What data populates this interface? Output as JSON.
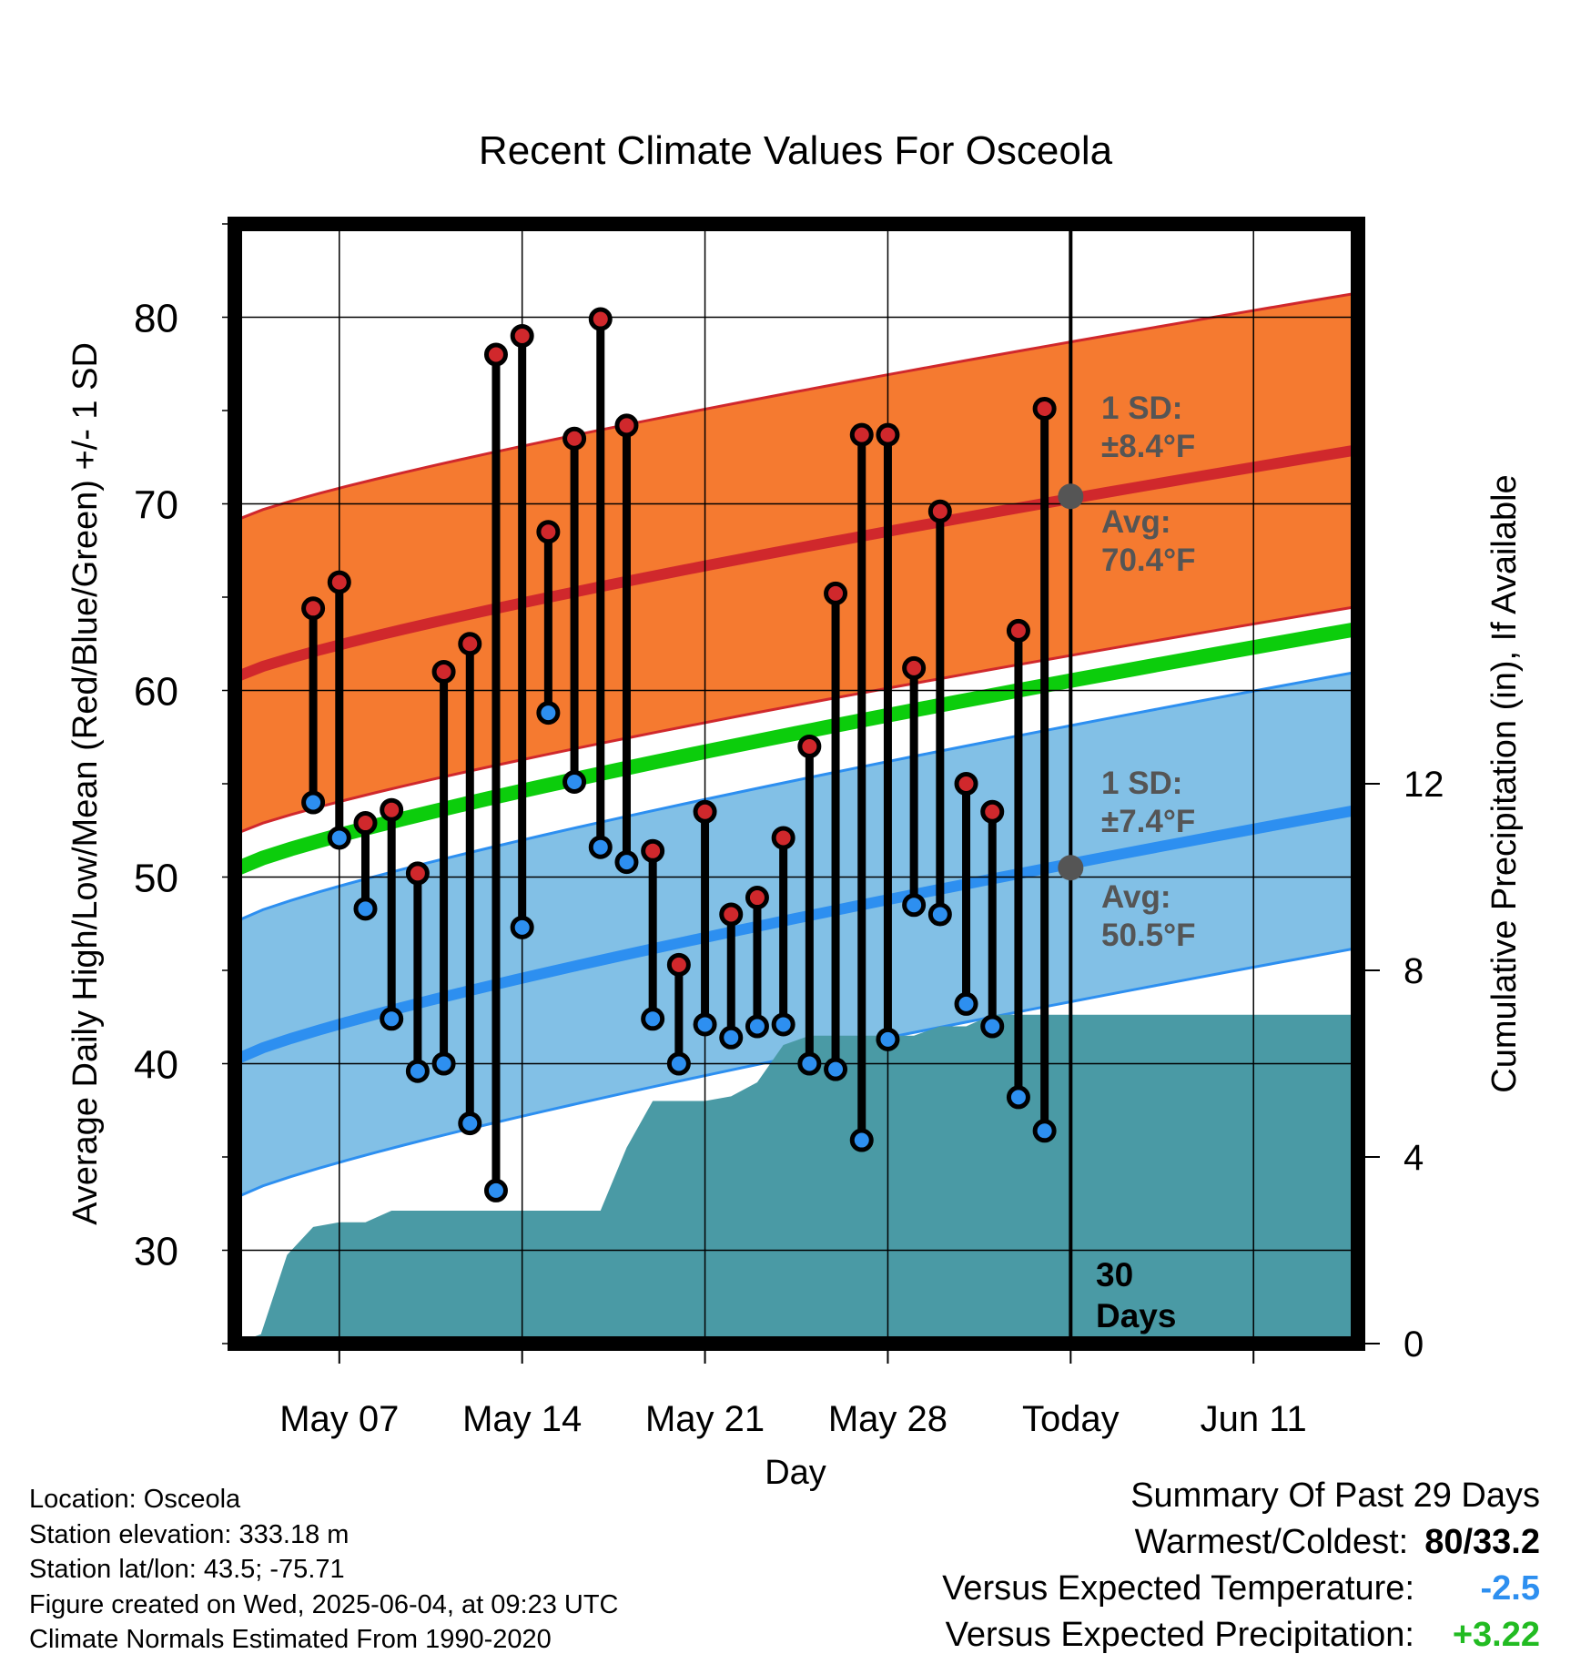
{
  "chart_data": {
    "type": "line",
    "title": "Recent Climate Values For Osceola",
    "xlabel": "Day",
    "ylabel": "Average Daily High/Low/Mean (Red/Blue/Green) +/- 1 SD",
    "y2label": "Cumulative Precipitation (in), If Available",
    "xlim_days": [
      3,
      17
    ],
    "ylim": [
      25,
      85
    ],
    "y2lim": [
      0,
      24
    ],
    "x_tick_labels": [
      "May 07",
      "May 14",
      "May 21",
      "May 28",
      "Today",
      "Jun 11"
    ],
    "y_tick_labels": [
      "30",
      "40",
      "50",
      "60",
      "70",
      "80"
    ],
    "y2_tick_labels": [
      "0",
      "4",
      "8",
      "12"
    ],
    "grid": true,
    "colors": {
      "high": "#d0282c",
      "low": "#2d8ff0",
      "mean": "#0ccd0c",
      "high_band": "#f57a30",
      "low_band": "#82c0e6",
      "precip": "#4a9aa5"
    },
    "days": [
      "May 06",
      "May 07",
      "May 08",
      "May 09",
      "May 10",
      "May 11",
      "May 12",
      "May 13",
      "May 14",
      "May 15",
      "May 16",
      "May 17",
      "May 18",
      "May 19",
      "May 20",
      "May 21",
      "May 22",
      "May 23",
      "May 24",
      "May 25",
      "May 26",
      "May 27",
      "May 28",
      "May 29",
      "May 30",
      "May 31",
      "Jun 01",
      "Jun 02",
      "Jun 03"
    ],
    "series": [
      {
        "name": "High",
        "values": [
          64.4,
          65.8,
          52.9,
          53.6,
          50.2,
          61.0,
          62.5,
          78.0,
          79.0,
          68.5,
          73.5,
          79.9,
          74.2,
          51.4,
          45.3,
          53.5,
          48.0,
          48.9,
          52.1,
          57.0,
          65.2,
          73.7,
          73.7,
          61.2,
          69.6,
          55.0,
          53.5,
          63.2,
          75.1
        ]
      },
      {
        "name": "Low",
        "values": [
          54.0,
          52.1,
          48.3,
          42.4,
          39.6,
          40.0,
          36.8,
          33.2,
          47.3,
          58.8,
          55.1,
          51.6,
          50.8,
          42.4,
          40.0,
          42.1,
          41.4,
          42.0,
          42.1,
          40.0,
          39.7,
          35.9,
          41.3,
          48.5,
          48.0,
          43.2,
          42.0,
          38.2,
          36.4
        ]
      }
    ],
    "normals": {
      "high_avg": {
        "May 03": 60.7,
        "Jun 15": 72.9
      },
      "low_avg": {
        "May 03": 40.2,
        "Jun 15": 53.6
      },
      "mean_avg": {
        "May 03": 50.4,
        "Jun 15": 63.3
      }
    },
    "precip": {
      "name": "Cumulative Precipitation",
      "x": [
        "May 03",
        "May 04",
        "May 05",
        "May 06",
        "May 07",
        "May 08",
        "May 09",
        "May 10",
        "May 11",
        "May 12",
        "May 13",
        "May 14",
        "May 15",
        "May 16",
        "May 17",
        "May 18",
        "May 19",
        "May 20",
        "May 21",
        "May 22",
        "May 23",
        "May 24",
        "May 25",
        "May 26",
        "May 27",
        "May 28",
        "May 29",
        "May 30",
        "May 31",
        "Jun 01",
        "Jun 02",
        "Jun 03",
        "Jun 04",
        "Jun 05",
        "Jun 15"
      ],
      "values": [
        0,
        0.2,
        1.9,
        2.5,
        2.6,
        2.6,
        2.85,
        2.85,
        2.85,
        2.85,
        2.85,
        2.85,
        2.85,
        2.85,
        2.85,
        4.2,
        5.2,
        5.2,
        5.2,
        5.3,
        5.6,
        6.4,
        6.6,
        6.6,
        6.6,
        6.6,
        6.6,
        6.8,
        6.8,
        7.05,
        7.05,
        7.05,
        7.05,
        7.05,
        7.05
      ]
    },
    "annotations": {
      "high_sd_label": "1 SD:",
      "high_sd_value": "±8.4°F",
      "high_avg_label": "Avg:",
      "high_avg_value": "70.4°F",
      "low_sd_label": "1 SD:",
      "low_sd_value": "±7.4°F",
      "low_avg_label": "Avg:",
      "low_avg_value": "50.5°F",
      "today_count": "30",
      "today_unit": "Days"
    }
  },
  "footer": {
    "location": "Location: Osceola",
    "elevation": "Station elevation: 333.18 m",
    "latlon": "Station lat/lon: 43.5; -75.71",
    "created": "Figure created on Wed, 2025-06-04, at 09:23 UTC",
    "normals": "Climate Normals Estimated From 1990-2020"
  },
  "summary": {
    "heading": "Summary Of Past 29 Days",
    "warmest_label": "Warmest/Coldest:",
    "warmest_value": "80/33.2",
    "temp_label": "Versus Expected Temperature:",
    "temp_value": "-2.5",
    "temp_color": "#2d8ff0",
    "precip_label": "Versus Expected Precipitation:",
    "precip_value": "+3.22",
    "precip_color": "#22bb22"
  }
}
